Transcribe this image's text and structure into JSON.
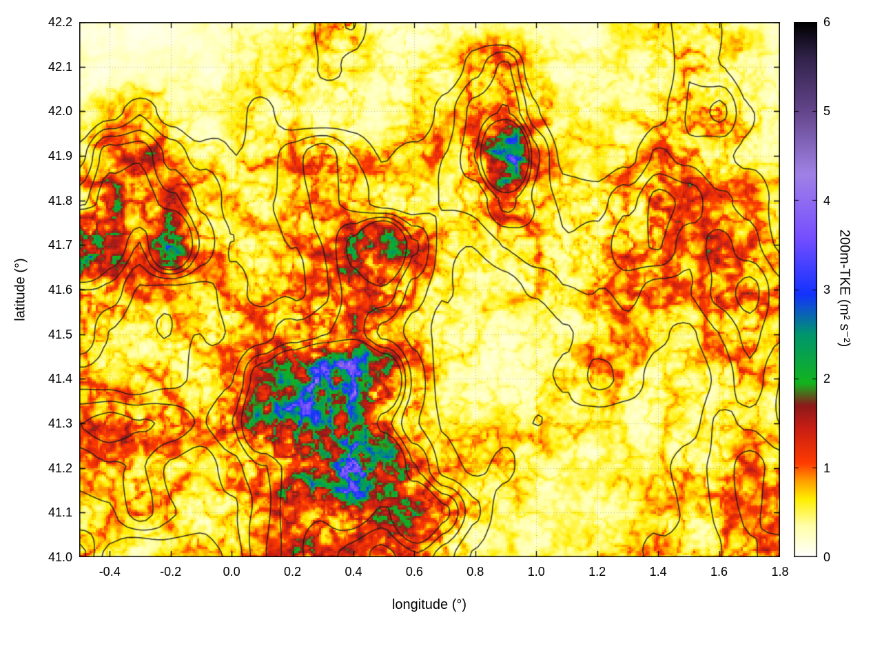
{
  "figure": {
    "background": "#ffffff"
  },
  "chart_data": {
    "type": "heatmap",
    "title": "",
    "xlabel": "longitude (°)",
    "ylabel": "latitude (°)",
    "xlim": [
      -0.5,
      1.8
    ],
    "ylim": [
      41.0,
      42.2
    ],
    "xticks": [
      -0.4,
      -0.2,
      0.0,
      0.2,
      0.4,
      0.6,
      0.8,
      1.0,
      1.2,
      1.4,
      1.6,
      1.8
    ],
    "yticks": [
      41.0,
      41.1,
      41.2,
      41.3,
      41.4,
      41.5,
      41.6,
      41.7,
      41.8,
      41.9,
      42.0,
      42.1,
      42.2
    ],
    "grid_lines": "dotted gray at major ticks",
    "overlay": "black terrain-elevation contour lines",
    "colorbar": {
      "label": "200m-TKE (m² s⁻²)",
      "range": [
        0,
        6
      ],
      "ticks": [
        0,
        1,
        2,
        3,
        4,
        5,
        6
      ],
      "palette": [
        {
          "v": 0.0,
          "c": "#ffffff"
        },
        {
          "v": 0.35,
          "c": "#ffffa8"
        },
        {
          "v": 0.65,
          "c": "#ffee00"
        },
        {
          "v": 0.85,
          "c": "#ffa000"
        },
        {
          "v": 1.05,
          "c": "#ff3c00"
        },
        {
          "v": 1.45,
          "c": "#c81e14"
        },
        {
          "v": 1.7,
          "c": "#8c1a1a"
        },
        {
          "v": 1.95,
          "c": "#14b41e"
        },
        {
          "v": 2.5,
          "c": "#00966e"
        },
        {
          "v": 2.95,
          "c": "#1432ff"
        },
        {
          "v": 3.6,
          "c": "#7850ff"
        },
        {
          "v": 4.3,
          "c": "#a082e6"
        },
        {
          "v": 5.0,
          "c": "#64468c"
        },
        {
          "v": 5.6,
          "c": "#32234b"
        },
        {
          "v": 6.0,
          "c": "#000000"
        }
      ]
    },
    "field": {
      "name": "200m turbulent kinetic energy",
      "units": "m² s⁻²",
      "lon_min": -0.5,
      "lon_max": 1.8,
      "lat_min": 41.0,
      "lat_max": 42.2,
      "nx": 24,
      "ny": 13,
      "order": "rows from lat 42.2 (top) to lat 41.0 (bottom); columns from lon -0.5 to lon 1.8; values estimated from pixel colors",
      "values_coarse": [
        [
          0.2,
          0.2,
          0.1,
          0.2,
          0.3,
          0.3,
          0.4,
          0.5,
          0.9,
          1.0,
          0.5,
          0.4,
          0.5,
          0.6,
          0.4,
          0.3,
          0.3,
          0.4,
          0.5,
          0.8,
          1.0,
          0.9,
          0.5,
          0.3
        ],
        [
          0.3,
          0.2,
          0.2,
          0.2,
          0.3,
          0.4,
          0.5,
          0.6,
          0.8,
          0.7,
          0.5,
          0.5,
          0.6,
          0.9,
          1.2,
          0.6,
          0.4,
          0.4,
          0.5,
          0.7,
          1.1,
          0.8,
          0.6,
          0.4
        ],
        [
          0.4,
          0.6,
          0.9,
          0.6,
          0.4,
          0.5,
          0.9,
          0.6,
          0.5,
          0.6,
          0.5,
          0.6,
          0.8,
          1.1,
          1.2,
          0.8,
          0.5,
          0.5,
          0.6,
          0.8,
          1.1,
          1.2,
          0.8,
          0.5
        ],
        [
          0.7,
          1.2,
          1.4,
          1.0,
          0.7,
          0.6,
          0.8,
          1.0,
          1.2,
          0.9,
          0.7,
          0.8,
          0.9,
          1.2,
          3.0,
          1.1,
          0.7,
          0.6,
          0.8,
          1.1,
          1.0,
          0.8,
          0.7,
          0.6
        ],
        [
          1.0,
          1.4,
          1.5,
          1.2,
          0.9,
          0.7,
          0.8,
          0.9,
          1.1,
          1.0,
          0.8,
          0.8,
          0.9,
          0.9,
          1.2,
          1.0,
          0.8,
          0.8,
          1.1,
          1.4,
          1.3,
          1.0,
          0.9,
          0.7
        ],
        [
          3.5,
          1.6,
          1.1,
          2.0,
          1.1,
          0.8,
          0.7,
          0.9,
          1.1,
          1.5,
          2.4,
          1.3,
          0.8,
          0.7,
          0.8,
          0.9,
          0.8,
          0.9,
          1.2,
          1.3,
          1.0,
          1.2,
          1.0,
          0.7
        ],
        [
          1.3,
          1.2,
          0.9,
          0.8,
          0.8,
          0.9,
          0.8,
          0.9,
          1.1,
          1.4,
          1.5,
          1.1,
          0.8,
          0.6,
          0.6,
          0.7,
          0.8,
          0.9,
          1.0,
          0.9,
          0.9,
          1.1,
          1.3,
          0.9
        ],
        [
          1.3,
          0.9,
          0.8,
          0.7,
          0.8,
          0.9,
          1.0,
          1.2,
          1.3,
          1.4,
          1.1,
          0.9,
          0.7,
          0.5,
          0.4,
          0.5,
          0.6,
          0.8,
          0.9,
          0.8,
          0.7,
          0.9,
          1.1,
          0.9
        ],
        [
          0.9,
          0.8,
          0.7,
          0.7,
          0.8,
          1.0,
          1.6,
          2.2,
          3.2,
          3.4,
          2.0,
          1.0,
          0.6,
          0.5,
          0.5,
          0.6,
          0.7,
          0.9,
          0.8,
          0.7,
          0.6,
          0.8,
          1.0,
          0.7
        ],
        [
          1.2,
          1.3,
          1.2,
          1.1,
          1.0,
          1.2,
          2.0,
          2.8,
          2.6,
          2.0,
          1.3,
          0.9,
          0.7,
          0.6,
          0.7,
          0.8,
          0.7,
          0.6,
          0.5,
          0.6,
          0.7,
          0.9,
          0.8,
          0.6
        ],
        [
          0.8,
          0.9,
          1.0,
          0.8,
          0.7,
          1.0,
          1.3,
          1.6,
          2.6,
          4.2,
          2.2,
          1.2,
          0.8,
          0.7,
          0.8,
          0.6,
          0.5,
          0.5,
          0.6,
          0.7,
          0.8,
          0.9,
          1.0,
          0.8
        ],
        [
          0.7,
          0.8,
          1.1,
          0.9,
          0.8,
          0.9,
          1.2,
          1.6,
          1.5,
          1.6,
          1.4,
          2.0,
          1.4,
          0.9,
          0.6,
          0.5,
          0.4,
          0.5,
          0.6,
          0.7,
          0.8,
          0.9,
          1.0,
          0.9
        ],
        [
          1.2,
          0.7,
          0.5,
          0.6,
          0.7,
          0.8,
          1.2,
          1.5,
          1.3,
          1.2,
          1.1,
          1.2,
          0.9,
          0.7,
          0.5,
          0.4,
          0.5,
          0.6,
          0.7,
          0.8,
          0.9,
          0.9,
          1.0,
          1.1
        ]
      ]
    }
  }
}
